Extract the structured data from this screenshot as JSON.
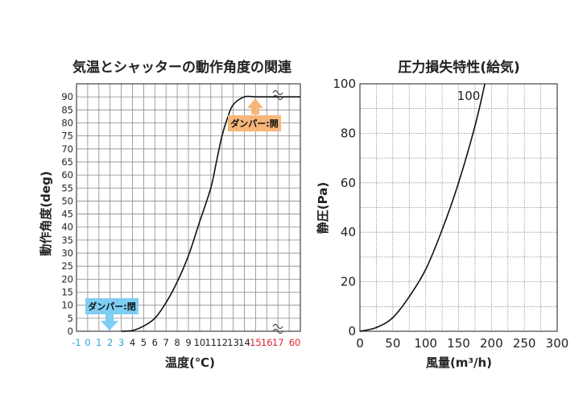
{
  "chart_data": [
    {
      "type": "line",
      "title": "気温とシャッターの動作角度の関連",
      "xlabel": "温度(℃)",
      "ylabel": "動作角度(deg)",
      "x_ticks": [
        {
          "label": "-1",
          "color": "#2aa7d8"
        },
        {
          "label": "0",
          "color": "#2aa7d8"
        },
        {
          "label": "1",
          "color": "#2aa7d8"
        },
        {
          "label": "2",
          "color": "#2aa7d8"
        },
        {
          "label": "3",
          "color": "#2aa7d8"
        },
        {
          "label": "4",
          "color": "#222222"
        },
        {
          "label": "5",
          "color": "#222222"
        },
        {
          "label": "6",
          "color": "#222222"
        },
        {
          "label": "7",
          "color": "#222222"
        },
        {
          "label": "8",
          "color": "#222222"
        },
        {
          "label": "9",
          "color": "#222222"
        },
        {
          "label": "10",
          "color": "#222222"
        },
        {
          "label": "11",
          "color": "#222222"
        },
        {
          "label": "12",
          "color": "#222222"
        },
        {
          "label": "13",
          "color": "#222222"
        },
        {
          "label": "14",
          "color": "#222222"
        },
        {
          "label": "15",
          "color": "#e0242c"
        },
        {
          "label": "16",
          "color": "#e0242c"
        },
        {
          "label": "17",
          "color": "#e0242c"
        },
        {
          "label": "60",
          "color": "#e0242c"
        }
      ],
      "y_ticks": [
        0,
        5,
        10,
        15,
        20,
        25,
        30,
        35,
        40,
        45,
        50,
        55,
        60,
        65,
        70,
        75,
        80,
        85,
        90
      ],
      "ylim": [
        0,
        95
      ],
      "grid": true,
      "axis_break": "~~",
      "series": [
        {
          "x": [
            3,
            4,
            5,
            6,
            7,
            8,
            9,
            10,
            11,
            11.5,
            12,
            12.5,
            13,
            14,
            15,
            17,
            60
          ],
          "values": [
            0,
            0.3,
            2,
            5,
            11,
            19,
            29,
            42,
            55,
            65,
            75,
            82,
            87,
            90,
            90,
            90,
            90
          ]
        }
      ],
      "annotations": [
        {
          "text": "ダンパー:開",
          "color": "#f6b67a",
          "at_x": 14.2,
          "at_y": 79,
          "arrow": "up"
        },
        {
          "text": "ダンパー:閉",
          "color": "#7ecdf2",
          "at_x": 2.4,
          "at_y": 5,
          "arrow": "down"
        }
      ]
    },
    {
      "type": "line",
      "title": "圧力損失特性(給気)",
      "xlabel": "風量(m³/h)",
      "ylabel": "静圧(Pa)",
      "xlim": [
        0,
        300
      ],
      "ylim": [
        0,
        100
      ],
      "x_ticks": [
        0,
        50,
        100,
        150,
        200,
        250,
        300
      ],
      "y_ticks": [
        0,
        20,
        40,
        60,
        80,
        100
      ],
      "grid": true,
      "series": [
        {
          "name": "100",
          "x": [
            0,
            25,
            50,
            75,
            100,
            125,
            150,
            175,
            190
          ],
          "values": [
            0,
            1.5,
            5.5,
            14,
            25,
            41,
            60,
            83,
            100
          ]
        }
      ]
    }
  ]
}
